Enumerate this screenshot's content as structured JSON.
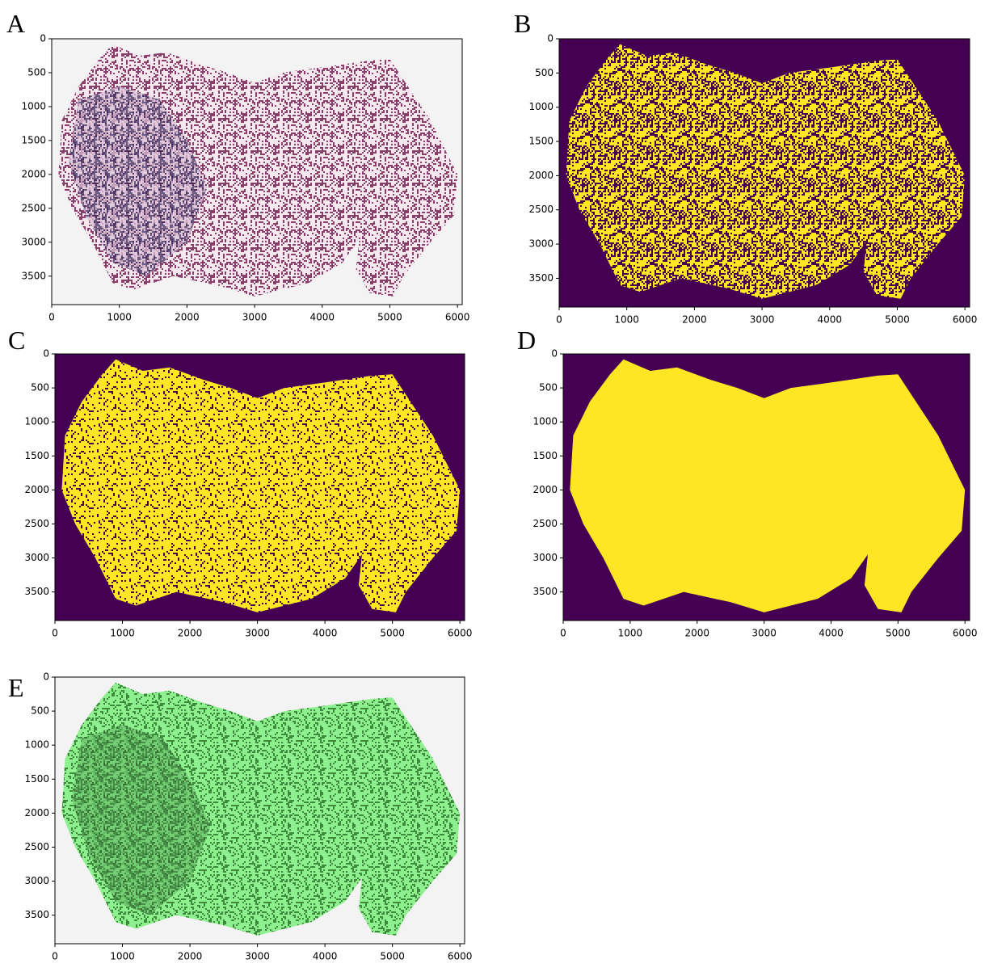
{
  "chart_data": [
    {
      "type": "image",
      "panel_label": "A",
      "style": "he-stain",
      "xlim": [
        0,
        6070
      ],
      "ylim": [
        0,
        3920
      ],
      "y_inverted": true,
      "xticks": [
        0,
        1000,
        2000,
        3000,
        4000,
        5000,
        6000
      ],
      "yticks": [
        0,
        500,
        1000,
        1500,
        2000,
        2500,
        3000,
        3500
      ]
    },
    {
      "type": "image",
      "panel_label": "B",
      "style": "binary-sparse",
      "xlim": [
        0,
        6070
      ],
      "ylim": [
        0,
        3920
      ],
      "y_inverted": true,
      "xticks": [
        0,
        1000,
        2000,
        3000,
        4000,
        5000,
        6000
      ],
      "yticks": [
        0,
        500,
        1000,
        1500,
        2000,
        2500,
        3000,
        3500
      ]
    },
    {
      "type": "image",
      "panel_label": "C",
      "style": "binary-dense",
      "xlim": [
        0,
        6070
      ],
      "ylim": [
        0,
        3920
      ],
      "y_inverted": true,
      "xticks": [
        0,
        1000,
        2000,
        3000,
        4000,
        5000,
        6000
      ],
      "yticks": [
        0,
        500,
        1000,
        1500,
        2000,
        2500,
        3000,
        3500
      ]
    },
    {
      "type": "image",
      "panel_label": "D",
      "style": "binary-filled",
      "xlim": [
        0,
        6070
      ],
      "ylim": [
        0,
        3920
      ],
      "y_inverted": true,
      "xticks": [
        0,
        1000,
        2000,
        3000,
        4000,
        5000,
        6000
      ],
      "yticks": [
        0,
        500,
        1000,
        1500,
        2000,
        2500,
        3000,
        3500
      ]
    },
    {
      "type": "image",
      "panel_label": "E",
      "style": "overlay",
      "xlim": [
        0,
        6070
      ],
      "ylim": [
        0,
        3920
      ],
      "y_inverted": true,
      "xticks": [
        0,
        1000,
        2000,
        3000,
        4000,
        5000,
        6000
      ],
      "yticks": [
        0,
        500,
        1000,
        1500,
        2000,
        2500,
        3000,
        3500
      ]
    }
  ]
}
